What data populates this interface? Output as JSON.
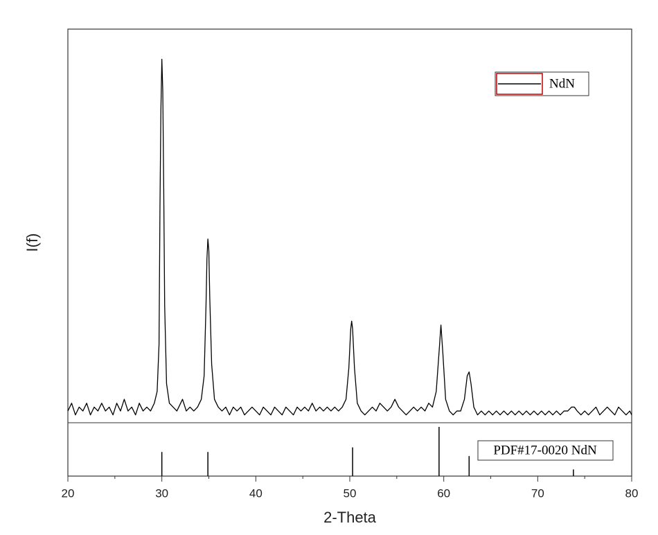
{
  "chart_data": {
    "type": "line",
    "xlabel": "2-Theta",
    "ylabel": "I(f)",
    "xlim": [
      20,
      80
    ],
    "xticks": [
      20,
      30,
      40,
      50,
      60,
      70,
      80
    ],
    "xminorticks": [
      25,
      35,
      45,
      55,
      65,
      75
    ],
    "ylim": [
      0,
      100
    ],
    "legend": "upper right",
    "x": [
      20.0,
      20.4,
      20.8,
      21.2,
      21.6,
      22.0,
      22.4,
      22.8,
      23.2,
      23.6,
      24.0,
      24.4,
      24.8,
      25.2,
      25.6,
      26.0,
      26.4,
      26.8,
      27.2,
      27.6,
      28.0,
      28.4,
      28.8,
      29.2,
      29.5,
      29.7,
      29.8,
      29.9,
      30.0,
      30.1,
      30.2,
      30.3,
      30.5,
      30.8,
      31.2,
      31.6,
      32.0,
      32.2,
      32.6,
      33.0,
      33.4,
      33.8,
      34.2,
      34.5,
      34.7,
      34.8,
      34.9,
      35.0,
      35.1,
      35.3,
      35.6,
      36.0,
      36.4,
      36.8,
      37.2,
      37.6,
      38.0,
      38.4,
      38.8,
      39.2,
      39.6,
      40.0,
      40.4,
      40.8,
      41.2,
      41.6,
      42.0,
      42.4,
      42.8,
      43.2,
      43.6,
      44.0,
      44.4,
      44.8,
      45.2,
      45.6,
      46.0,
      46.4,
      46.8,
      47.2,
      47.6,
      48.0,
      48.4,
      48.8,
      49.2,
      49.6,
      49.9,
      50.1,
      50.2,
      50.3,
      50.5,
      50.8,
      51.2,
      51.6,
      52.0,
      52.4,
      52.8,
      53.2,
      53.6,
      54.0,
      54.4,
      54.8,
      55.2,
      55.6,
      56.0,
      56.4,
      56.8,
      57.2,
      57.6,
      58.0,
      58.4,
      58.8,
      59.2,
      59.5,
      59.7,
      59.9,
      60.2,
      60.6,
      61.0,
      61.4,
      61.8,
      62.2,
      62.5,
      62.7,
      62.9,
      63.2,
      63.6,
      64.0,
      64.4,
      64.8,
      65.2,
      65.6,
      66.0,
      66.4,
      66.8,
      67.2,
      67.6,
      68.0,
      68.4,
      68.8,
      69.2,
      69.6,
      70.0,
      70.4,
      70.8,
      71.2,
      71.6,
      72.0,
      72.4,
      72.8,
      73.2,
      73.6,
      73.9,
      74.2,
      74.6,
      75.0,
      75.4,
      75.8,
      76.2,
      76.6,
      77.0,
      77.4,
      77.8,
      78.2,
      78.6,
      79.0,
      79.4,
      79.8,
      80.0
    ],
    "series": [
      {
        "name": "NdN",
        "color": "#000000",
        "values": [
          3,
          5,
          2,
          4,
          3,
          5,
          2,
          4,
          3,
          5,
          3,
          4,
          2,
          5,
          3,
          6,
          3,
          4,
          2,
          5,
          3,
          4,
          3,
          5,
          8,
          20,
          55,
          80,
          93,
          85,
          60,
          30,
          10,
          5,
          4,
          3,
          5,
          6,
          3,
          4,
          3,
          4,
          6,
          12,
          30,
          42,
          47,
          44,
          32,
          15,
          6,
          4,
          3,
          4,
          2,
          4,
          3,
          4,
          2,
          3,
          4,
          3,
          2,
          4,
          3,
          2,
          4,
          3,
          2,
          4,
          3,
          2,
          4,
          3,
          4,
          3,
          5,
          3,
          4,
          3,
          4,
          3,
          4,
          3,
          4,
          6,
          14,
          24,
          26,
          24,
          14,
          5,
          3,
          2,
          3,
          4,
          3,
          5,
          4,
          3,
          4,
          6,
          4,
          3,
          2,
          3,
          4,
          3,
          4,
          3,
          5,
          4,
          8,
          18,
          25,
          18,
          6,
          3,
          2,
          3,
          3,
          6,
          12,
          13,
          10,
          4,
          2,
          3,
          2,
          3,
          2,
          3,
          2,
          3,
          2,
          3,
          2,
          3,
          2,
          3,
          2,
          3,
          2,
          3,
          2,
          3,
          2,
          3,
          2,
          3,
          3,
          4,
          4,
          3,
          2,
          3,
          2,
          3,
          4,
          2,
          3,
          4,
          3,
          2,
          4,
          3,
          2,
          3,
          2
        ]
      }
    ],
    "reference": {
      "type": "stem",
      "name": "PDF#17-0020 NdN",
      "color": "#000000",
      "x": [
        30.0,
        34.9,
        50.3,
        59.5,
        62.7,
        73.8
      ],
      "values": [
        47,
        47,
        56,
        96,
        39,
        13
      ],
      "ylim": [
        0,
        100
      ]
    }
  }
}
